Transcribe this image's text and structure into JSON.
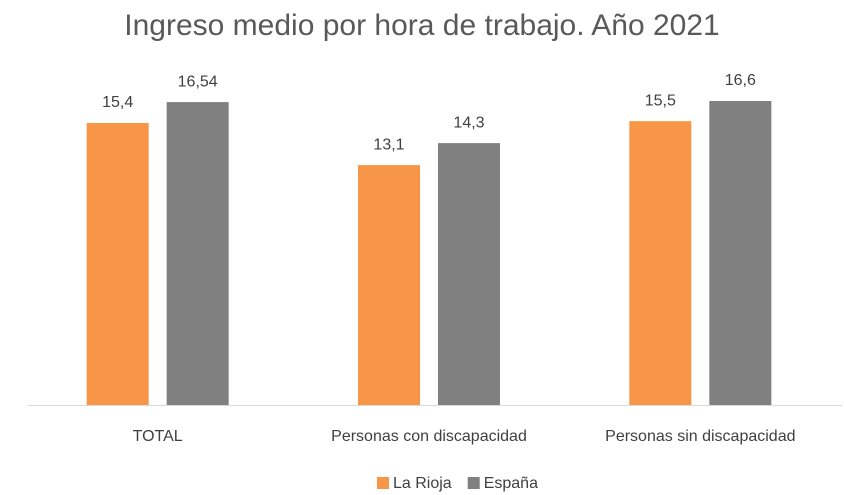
{
  "chart_data": {
    "type": "bar",
    "title": "Ingreso medio por hora de trabajo. Año 2021",
    "categories": [
      "TOTAL",
      "Personas con discapacidad",
      "Personas sin discapacidad"
    ],
    "series": [
      {
        "name": "La Rioja",
        "color": "#f79646",
        "values": [
          15.4,
          13.1,
          15.5
        ],
        "value_labels": [
          "15,4",
          "13,1",
          "15,5"
        ]
      },
      {
        "name": "España",
        "color": "#808080",
        "values": [
          16.54,
          14.3,
          16.6
        ],
        "value_labels": [
          "16,54",
          "14,3",
          "16,6"
        ]
      }
    ]
  }
}
